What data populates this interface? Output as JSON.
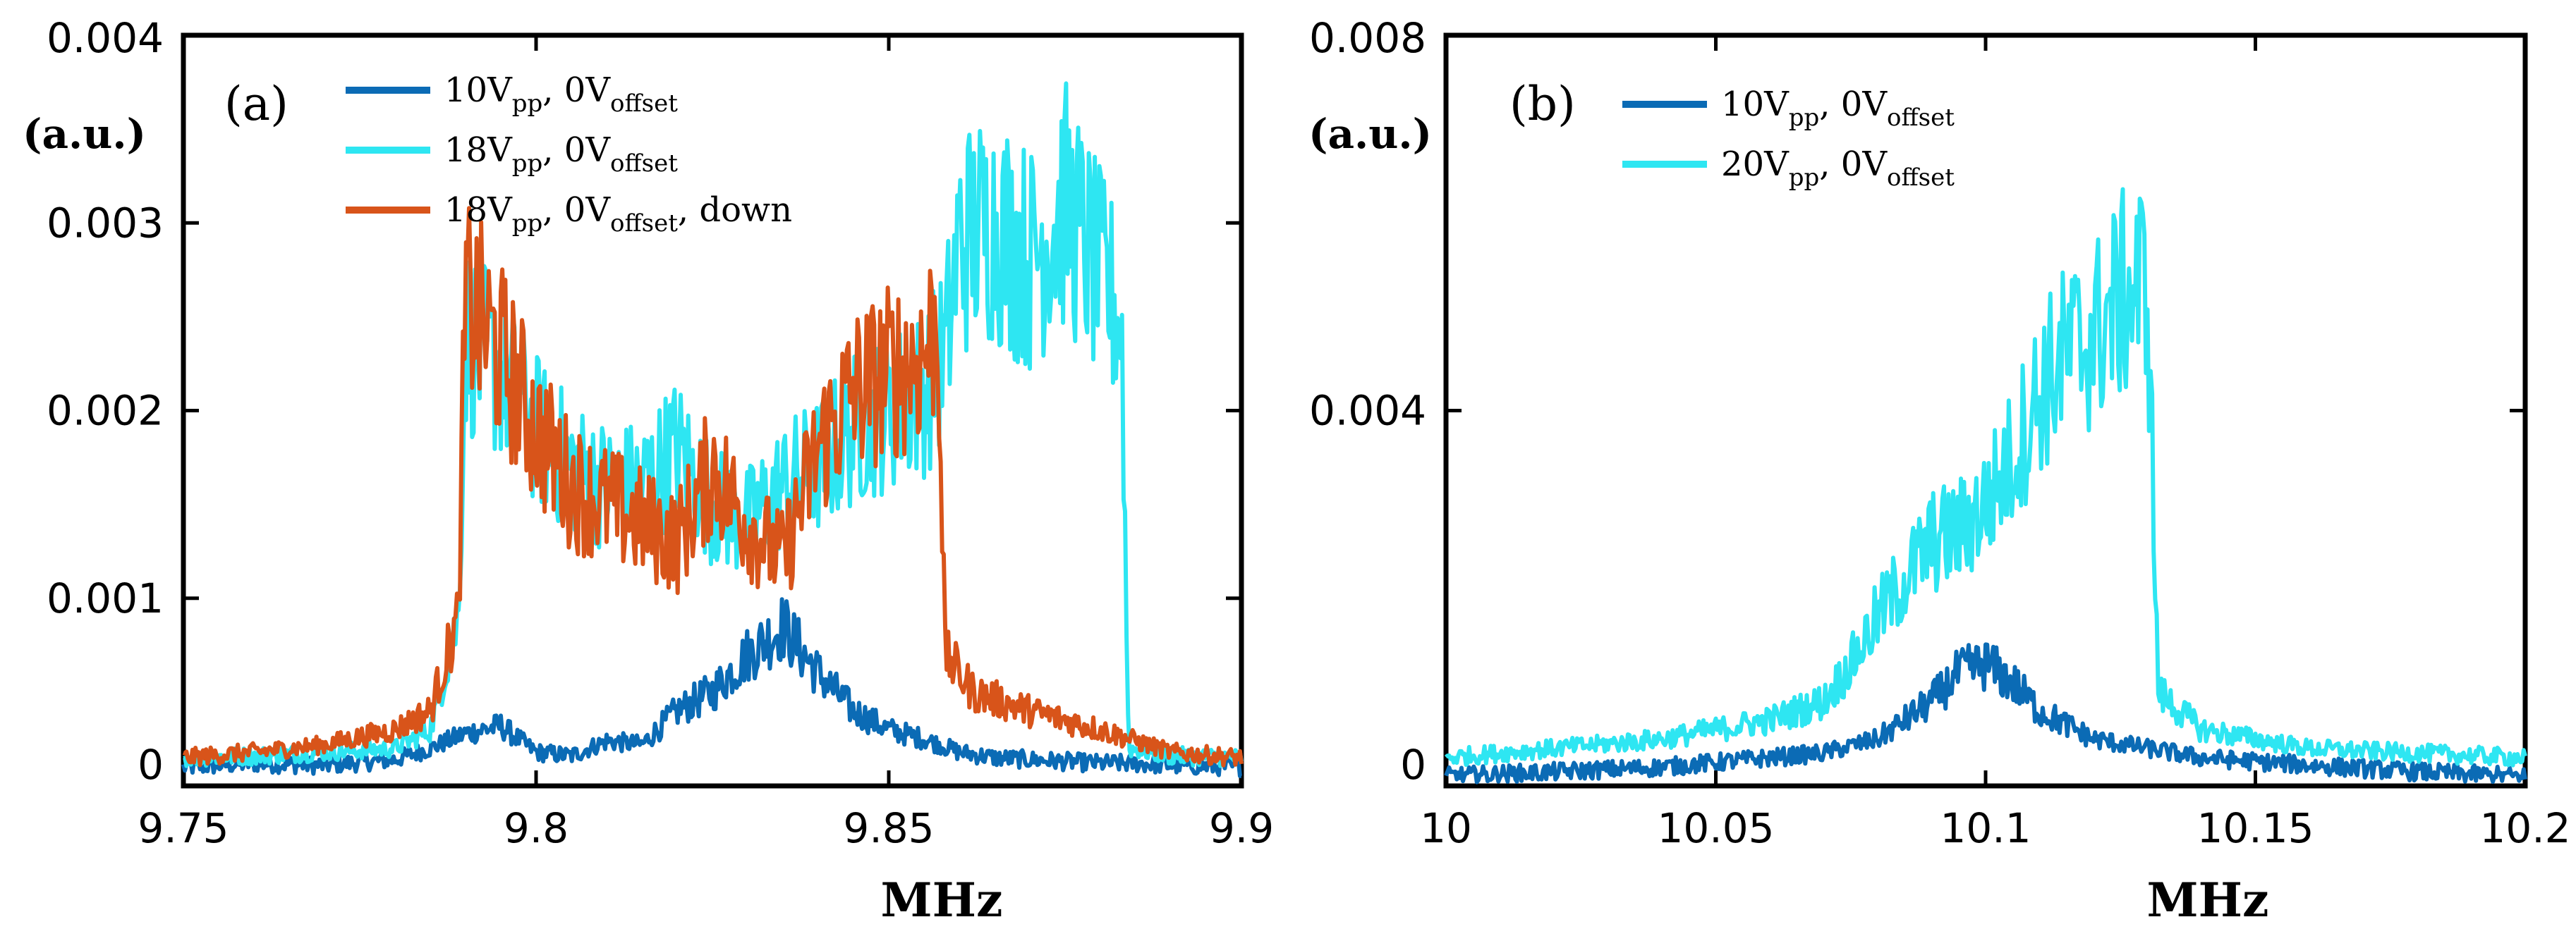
{
  "chart_data": [
    {
      "type": "line",
      "panel_label": "(a)",
      "xlabel": "MHz",
      "ylabel": "(a.u.)",
      "xlim": [
        9.75,
        9.9
      ],
      "ylim": [
        0,
        0.004
      ],
      "xticks": [
        "9.75",
        "9.8",
        "9.85",
        "9.9"
      ],
      "yticks": [
        "0",
        "0.001",
        "0.002",
        "0.003",
        "0.004"
      ],
      "legend_position": "top-left",
      "series": [
        {
          "name": "10Vpp, 0Voffset",
          "legend": {
            "a": "10V",
            "a_sub": "pp",
            "b": ",  0V",
            "b_sub": "offset",
            "c": ""
          },
          "color": "#0b6bb5",
          "x": [
            9.75,
            9.76,
            9.77,
            9.78,
            9.785,
            9.79,
            9.795,
            9.8,
            9.805,
            9.81,
            9.815,
            9.82,
            9.825,
            9.83,
            9.835,
            9.84,
            9.845,
            9.85,
            9.855,
            9.86,
            9.865,
            9.87,
            9.875,
            9.88,
            9.885,
            9.89,
            9.9
          ],
          "y": [
            0.0001,
            0.00012,
            0.00011,
            0.00014,
            0.0002,
            0.00028,
            0.00032,
            0.00018,
            0.00016,
            0.00024,
            0.00022,
            0.0004,
            0.0005,
            0.0007,
            0.00085,
            0.0006,
            0.0004,
            0.0003,
            0.00025,
            0.00018,
            0.00015,
            0.00014,
            0.00013,
            0.00012,
            0.00012,
            0.00011,
            0.0001
          ]
        },
        {
          "name": "18Vpp, 0Voffset",
          "legend": {
            "a": "18V",
            "a_sub": "pp",
            "b": ",  0V",
            "b_sub": "offset",
            "c": ""
          },
          "color": "#2ee6f2",
          "x": [
            9.75,
            9.76,
            9.77,
            9.78,
            9.785,
            9.789,
            9.79,
            9.795,
            9.8,
            9.805,
            9.81,
            9.815,
            9.82,
            9.825,
            9.83,
            9.835,
            9.84,
            9.845,
            9.85,
            9.855,
            9.858,
            9.86,
            9.865,
            9.87,
            9.875,
            9.88,
            9.883,
            9.884,
            9.89,
            9.9
          ],
          "y": [
            0.00015,
            0.00016,
            0.00018,
            0.0002,
            0.0003,
            0.0009,
            0.0024,
            0.0022,
            0.0019,
            0.0017,
            0.0016,
            0.0016,
            0.0018,
            0.0015,
            0.0014,
            0.0016,
            0.0017,
            0.0019,
            0.002,
            0.0021,
            0.0023,
            0.0029,
            0.003,
            0.0028,
            0.0031,
            0.0027,
            0.0025,
            0.0002,
            0.00016,
            0.00015
          ]
        },
        {
          "name": "18Vpp, 0Voffset, down",
          "legend": {
            "a": "18V",
            "a_sub": "pp",
            "b": ",  0V",
            "b_sub": "offset",
            "c": ",  down"
          },
          "color": "#d8541a",
          "x": [
            9.75,
            9.76,
            9.77,
            9.78,
            9.785,
            9.789,
            9.79,
            9.795,
            9.8,
            9.805,
            9.81,
            9.815,
            9.82,
            9.825,
            9.83,
            9.835,
            9.84,
            9.845,
            9.85,
            9.855,
            9.857,
            9.858,
            9.862,
            9.87,
            9.88,
            9.89,
            9.9
          ],
          "y": [
            0.00015,
            0.00018,
            0.00022,
            0.0003,
            0.0004,
            0.0009,
            0.0026,
            0.0023,
            0.0019,
            0.0016,
            0.0015,
            0.0014,
            0.0013,
            0.0017,
            0.0014,
            0.0012,
            0.0018,
            0.0021,
            0.0022,
            0.0023,
            0.0025,
            0.0007,
            0.0005,
            0.0004,
            0.0003,
            0.00018,
            0.00015
          ]
        }
      ]
    },
    {
      "type": "line",
      "panel_label": "(b)",
      "xlabel": "MHz",
      "ylabel": "(a.u.)",
      "xlim": [
        10.0,
        10.2
      ],
      "ylim": [
        0,
        0.008
      ],
      "xticks": [
        "10",
        "10.05",
        "10.1",
        "10.15",
        "10.2"
      ],
      "yticks": [
        "0",
        "0.004",
        "0.008"
      ],
      "legend_position": "top-left",
      "series": [
        {
          "name": "10Vpp, 0Voffset",
          "legend": {
            "a": "10V",
            "a_sub": "pp",
            "b": ",  0V",
            "b_sub": "offset",
            "c": ""
          },
          "color": "#0b6bb5",
          "x": [
            10.0,
            10.02,
            10.04,
            10.06,
            10.07,
            10.08,
            10.085,
            10.09,
            10.095,
            10.1,
            10.105,
            10.11,
            10.12,
            10.13,
            10.14,
            10.16,
            10.18,
            10.2
          ],
          "y": [
            0.0001,
            0.00015,
            0.0002,
            0.0003,
            0.00035,
            0.0005,
            0.0007,
            0.0009,
            0.0012,
            0.0013,
            0.0011,
            0.0008,
            0.0005,
            0.0004,
            0.0003,
            0.00022,
            0.00015,
            0.0001
          ]
        },
        {
          "name": "20Vpp, 0Voffset",
          "legend": {
            "a": "20V",
            "a_sub": "pp",
            "b": ",  0V",
            "b_sub": "offset",
            "c": ""
          },
          "color": "#2ee6f2",
          "x": [
            10.0,
            10.02,
            10.04,
            10.06,
            10.07,
            10.075,
            10.08,
            10.085,
            10.09,
            10.095,
            10.1,
            10.105,
            10.11,
            10.115,
            10.12,
            10.125,
            10.13,
            10.132,
            10.14,
            10.16,
            10.18,
            10.2
          ],
          "y": [
            0.0003,
            0.0004,
            0.0005,
            0.0007,
            0.0009,
            0.0013,
            0.0018,
            0.0022,
            0.0026,
            0.0027,
            0.003,
            0.0035,
            0.0042,
            0.0046,
            0.0048,
            0.0052,
            0.0054,
            0.001,
            0.0006,
            0.0004,
            0.00035,
            0.0003
          ]
        }
      ]
    }
  ]
}
